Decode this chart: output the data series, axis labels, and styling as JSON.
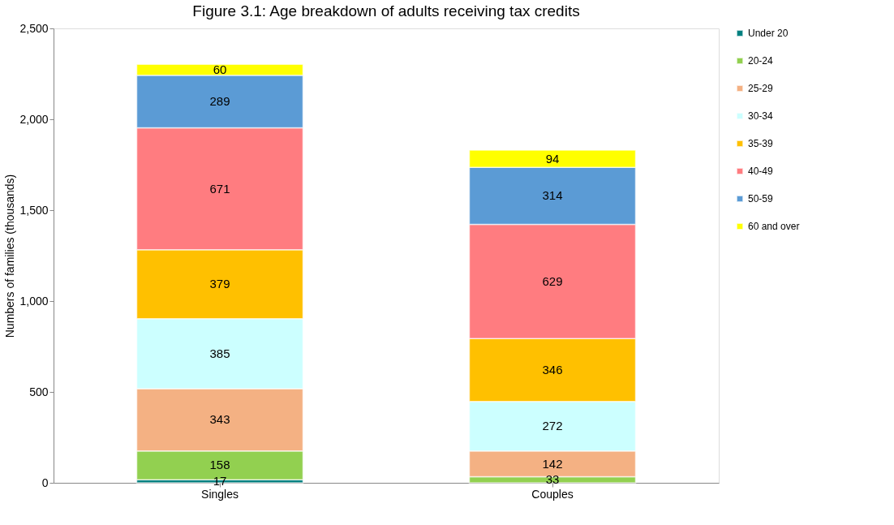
{
  "chart_data": {
    "type": "bar",
    "title": "Figure 3.1: Age breakdown  of adults  receiving tax credits",
    "ylabel": "Numbers  of families (thousands)",
    "categories": [
      "Singles",
      "Couples"
    ],
    "stacked": true,
    "data_labels": true,
    "grid": false,
    "legend": "right",
    "ylim": [
      0,
      2500
    ],
    "yticks": [
      0,
      {
        "value": 500,
        "label": "500"
      },
      {
        "value": 1000,
        "label": "1,000"
      },
      {
        "value": 1500,
        "label": "1,500"
      },
      {
        "value": 2000,
        "label": "2,000"
      },
      {
        "value": 2500,
        "label": "2,500"
      }
    ],
    "series": [
      {
        "name": "Under 20",
        "color": "#008080",
        "values": [
          17,
          null
        ]
      },
      {
        "name": "20-24",
        "color": "#92d050",
        "values": [
          158,
          33
        ]
      },
      {
        "name": "25-29",
        "color": "#f4b183",
        "values": [
          343,
          142
        ]
      },
      {
        "name": "30-34",
        "color": "#ccffff",
        "values": [
          385,
          272
        ]
      },
      {
        "name": "35-39",
        "color": "#ffc000",
        "values": [
          379,
          346
        ]
      },
      {
        "name": "40-49",
        "color": "#ff7c80",
        "values": [
          671,
          629
        ]
      },
      {
        "name": "50-59",
        "color": "#5b9bd5",
        "values": [
          289,
          314
        ]
      },
      {
        "name": "60 and over",
        "color": "#ffff00",
        "values": [
          60,
          94
        ]
      }
    ]
  }
}
